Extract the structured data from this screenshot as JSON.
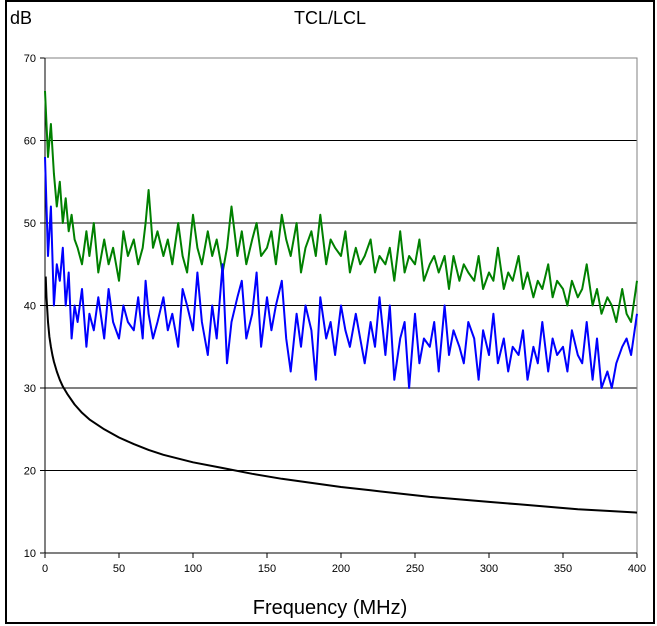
{
  "chart_data": {
    "type": "line",
    "title": "TCL/LCL",
    "ylabel": "dB",
    "xlabel": "Frequency (MHz)",
    "xlim": [
      0,
      400
    ],
    "ylim": [
      10,
      70
    ],
    "xticks": [
      0,
      50,
      100,
      150,
      200,
      250,
      300,
      350,
      400
    ],
    "yticks": [
      10,
      20,
      30,
      40,
      50,
      60,
      70
    ],
    "grid": {
      "horizontal": true,
      "vertical": false
    },
    "background": "#ffffff",
    "series": [
      {
        "color": "#008000",
        "x": [
          0,
          2,
          4,
          6,
          8,
          10,
          12,
          14,
          16,
          18,
          20,
          22,
          25,
          28,
          30,
          33,
          36,
          40,
          43,
          46,
          50,
          53,
          56,
          60,
          63,
          66,
          68,
          70,
          73,
          76,
          80,
          83,
          86,
          90,
          93,
          96,
          100,
          103,
          106,
          110,
          113,
          116,
          120,
          123,
          126,
          130,
          133,
          136,
          140,
          143,
          146,
          150,
          153,
          156,
          160,
          163,
          166,
          170,
          173,
          176,
          180,
          183,
          186,
          190,
          193,
          196,
          200,
          203,
          206,
          210,
          213,
          216,
          220,
          223,
          226,
          230,
          233,
          236,
          240,
          243,
          246,
          250,
          253,
          256,
          260,
          263,
          266,
          270,
          273,
          276,
          280,
          283,
          286,
          290,
          293,
          296,
          300,
          303,
          306,
          310,
          313,
          316,
          320,
          323,
          326,
          330,
          333,
          336,
          340,
          343,
          346,
          350,
          353,
          356,
          360,
          363,
          366,
          370,
          373,
          376,
          380,
          383,
          386,
          390,
          393,
          396,
          400
        ],
        "y": [
          66,
          58,
          62,
          56,
          52,
          55,
          50,
          53,
          49,
          51,
          48,
          47,
          45,
          49,
          46,
          50,
          44,
          48,
          45,
          47,
          43,
          49,
          46,
          48,
          45,
          47,
          50,
          54,
          47,
          49,
          46,
          48,
          45,
          50,
          46,
          44,
          51,
          47,
          45,
          49,
          46,
          48,
          44,
          47,
          52,
          46,
          49,
          45,
          48,
          50,
          46,
          47,
          49,
          45,
          51,
          48,
          46,
          50,
          44,
          47,
          49,
          46,
          51,
          45,
          48,
          47,
          46,
          49,
          44,
          47,
          45,
          46,
          48,
          44,
          46,
          45,
          47,
          43,
          49,
          44,
          46,
          45,
          48,
          43,
          45,
          46,
          44,
          46,
          42,
          46,
          43,
          45,
          44,
          43,
          46,
          42,
          44,
          43,
          47,
          42,
          44,
          43,
          46,
          42,
          44,
          41,
          43,
          42,
          45,
          41,
          43,
          42,
          40,
          43,
          41,
          42,
          45,
          40,
          42,
          39,
          41,
          40,
          38,
          42,
          39,
          38,
          43
        ]
      },
      {
        "color": "#0000ff",
        "x": [
          0,
          2,
          4,
          6,
          8,
          10,
          12,
          14,
          16,
          18,
          20,
          22,
          25,
          28,
          30,
          33,
          36,
          40,
          43,
          46,
          50,
          53,
          56,
          60,
          63,
          66,
          68,
          70,
          73,
          76,
          80,
          83,
          86,
          90,
          93,
          96,
          100,
          103,
          106,
          110,
          113,
          116,
          120,
          123,
          126,
          130,
          133,
          136,
          140,
          143,
          146,
          150,
          153,
          156,
          160,
          163,
          166,
          170,
          173,
          176,
          180,
          183,
          186,
          190,
          193,
          196,
          200,
          203,
          206,
          210,
          213,
          216,
          220,
          223,
          226,
          230,
          233,
          236,
          240,
          243,
          246,
          250,
          253,
          256,
          260,
          263,
          266,
          270,
          273,
          276,
          280,
          283,
          286,
          290,
          293,
          296,
          300,
          303,
          306,
          310,
          313,
          316,
          320,
          323,
          326,
          330,
          333,
          336,
          340,
          343,
          346,
          350,
          353,
          356,
          360,
          363,
          366,
          370,
          373,
          376,
          380,
          383,
          386,
          390,
          393,
          396,
          400
        ],
        "y": [
          58,
          46,
          52,
          40,
          45,
          43,
          47,
          40,
          44,
          36,
          40,
          38,
          42,
          35,
          39,
          37,
          41,
          36,
          42,
          38,
          36,
          40,
          38,
          37,
          41,
          36,
          43,
          39,
          36,
          38,
          41,
          37,
          39,
          35,
          42,
          40,
          37,
          44,
          38,
          34,
          40,
          36,
          45,
          33,
          38,
          41,
          43,
          36,
          39,
          44,
          35,
          41,
          37,
          40,
          43,
          36,
          32,
          39,
          35,
          40,
          37,
          31,
          41,
          36,
          38,
          34,
          40,
          37,
          35,
          39,
          36,
          33,
          38,
          35,
          41,
          34,
          40,
          31,
          36,
          38,
          30,
          39,
          33,
          36,
          35,
          38,
          32,
          40,
          34,
          37,
          35,
          33,
          38,
          36,
          31,
          37,
          34,
          39,
          33,
          36,
          32,
          35,
          34,
          37,
          31,
          35,
          33,
          38,
          32,
          36,
          34,
          35,
          32,
          37,
          34,
          33,
          38,
          31,
          36,
          30,
          32,
          30,
          33,
          35,
          36,
          34,
          39
        ]
      },
      {
        "color": "#000000",
        "x": [
          0.5,
          1,
          2,
          3,
          4,
          5,
          6,
          8,
          10,
          12,
          15,
          20,
          25,
          30,
          40,
          50,
          60,
          70,
          80,
          100,
          120,
          140,
          160,
          180,
          200,
          220,
          240,
          260,
          280,
          300,
          320,
          340,
          360,
          380,
          400
        ],
        "y": [
          43.5,
          41.0,
          38.0,
          36.2,
          35.0,
          34.0,
          33.2,
          32.0,
          31.0,
          30.2,
          29.3,
          28.0,
          27.0,
          26.2,
          25.0,
          24.0,
          23.2,
          22.5,
          21.9,
          21.0,
          20.3,
          19.6,
          19.0,
          18.5,
          18.0,
          17.6,
          17.2,
          16.8,
          16.5,
          16.2,
          15.9,
          15.6,
          15.3,
          15.1,
          14.9
        ]
      }
    ]
  }
}
